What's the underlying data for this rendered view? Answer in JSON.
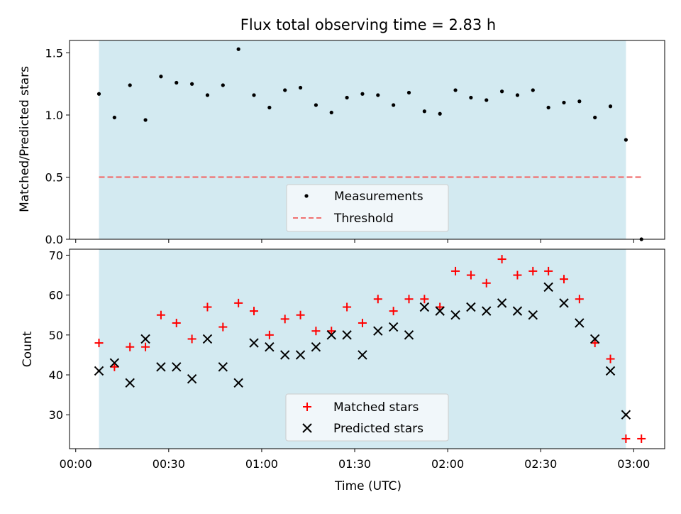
{
  "chart_data": [
    {
      "type": "scatter",
      "title": "Flux total observing time = 2.83 h",
      "xlabel": "",
      "ylabel": "Matched/Predicted stars",
      "xlim": [
        -2,
        190
      ],
      "ylim": [
        0,
        1.6
      ],
      "y_ticks": [
        0.0,
        0.5,
        1.0,
        1.5
      ],
      "y_tick_labels": [
        "0.0",
        "0.5",
        "1.0",
        "1.5"
      ],
      "shaded_span_x": [
        7.5,
        177.5
      ],
      "shade_color": "#d3eaf1",
      "legend_position": "lower-center",
      "series": [
        {
          "name": "Measurements",
          "marker": "dot",
          "color": "#000000",
          "x": [
            7.5,
            12.5,
            17.5,
            22.5,
            27.5,
            32.5,
            37.5,
            42.5,
            47.5,
            52.5,
            57.5,
            62.5,
            67.5,
            72.5,
            77.5,
            82.5,
            87.5,
            92.5,
            97.5,
            102.5,
            107.5,
            112.5,
            117.5,
            122.5,
            127.5,
            132.5,
            137.5,
            142.5,
            147.5,
            152.5,
            157.5,
            162.5,
            167.5,
            172.5,
            177.5,
            182.5
          ],
          "y": [
            1.17,
            0.98,
            1.24,
            0.96,
            1.31,
            1.26,
            1.25,
            1.16,
            1.24,
            1.53,
            1.16,
            1.06,
            1.2,
            1.22,
            1.08,
            1.02,
            1.14,
            1.17,
            1.16,
            1.08,
            1.18,
            1.03,
            1.01,
            1.2,
            1.14,
            1.12,
            1.19,
            1.16,
            1.2,
            1.06,
            1.1,
            1.11,
            0.98,
            1.07,
            0.8,
            0.0
          ]
        },
        {
          "name": "Threshold",
          "marker": "dashed-line",
          "color": "#f07070",
          "x": [
            7.5,
            182.5
          ],
          "y": [
            0.5,
            0.5
          ]
        }
      ]
    },
    {
      "type": "scatter",
      "title": "",
      "xlabel": "Time (UTC)",
      "ylabel": "Count",
      "xlim": [
        -2,
        190
      ],
      "ylim": [
        21.5,
        71.5
      ],
      "x_ticks": [
        0,
        30,
        60,
        90,
        120,
        150,
        180
      ],
      "x_tick_labels": [
        "00:00",
        "00:30",
        "01:00",
        "01:30",
        "02:00",
        "02:30",
        "03:00"
      ],
      "y_ticks": [
        30,
        40,
        50,
        60,
        70
      ],
      "y_tick_labels": [
        "30",
        "40",
        "50",
        "60",
        "70"
      ],
      "shaded_span_x": [
        7.5,
        177.5
      ],
      "shade_color": "#d3eaf1",
      "legend_position": "lower-center",
      "series": [
        {
          "name": "Matched stars",
          "marker": "plus",
          "color": "#ff0000",
          "x": [
            7.5,
            12.5,
            17.5,
            22.5,
            27.5,
            32.5,
            37.5,
            42.5,
            47.5,
            52.5,
            57.5,
            62.5,
            67.5,
            72.5,
            77.5,
            82.5,
            87.5,
            92.5,
            97.5,
            102.5,
            107.5,
            112.5,
            117.5,
            122.5,
            127.5,
            132.5,
            137.5,
            142.5,
            147.5,
            152.5,
            157.5,
            162.5,
            167.5,
            172.5,
            177.5,
            182.5
          ],
          "y": [
            48,
            42,
            47,
            47,
            55,
            53,
            49,
            57,
            52,
            58,
            56,
            50,
            54,
            55,
            51,
            51,
            57,
            53,
            59,
            56,
            59,
            59,
            57,
            66,
            65,
            63,
            69,
            65,
            66,
            66,
            64,
            59,
            48,
            44,
            24,
            24
          ]
        },
        {
          "name": "Predicted stars",
          "marker": "x",
          "color": "#000000",
          "x": [
            7.5,
            12.5,
            17.5,
            22.5,
            27.5,
            32.5,
            37.5,
            42.5,
            47.5,
            52.5,
            57.5,
            62.5,
            67.5,
            72.5,
            77.5,
            82.5,
            87.5,
            92.5,
            97.5,
            102.5,
            107.5,
            112.5,
            117.5,
            122.5,
            127.5,
            132.5,
            137.5,
            142.5,
            147.5,
            152.5,
            157.5,
            162.5,
            167.5,
            172.5,
            177.5
          ],
          "y": [
            41,
            43,
            38,
            49,
            42,
            42,
            39,
            49,
            42,
            38,
            48,
            47,
            45,
            45,
            47,
            50,
            50,
            45,
            51,
            52,
            50,
            57,
            56,
            55,
            57,
            56,
            58,
            56,
            55,
            62,
            58,
            53,
            49,
            41,
            30
          ]
        }
      ]
    }
  ]
}
